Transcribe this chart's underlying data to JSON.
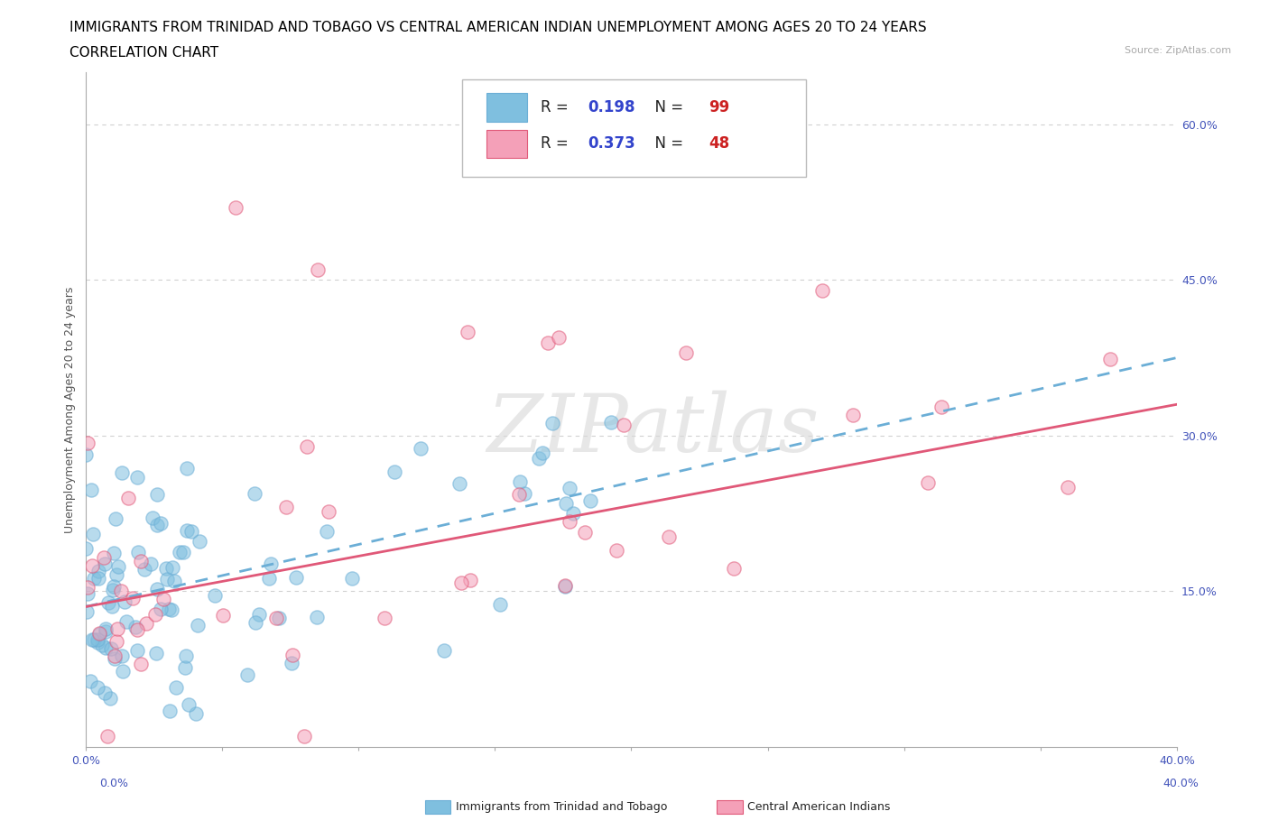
{
  "title_line1": "IMMIGRANTS FROM TRINIDAD AND TOBAGO VS CENTRAL AMERICAN INDIAN UNEMPLOYMENT AMONG AGES 20 TO 24 YEARS",
  "title_line2": "CORRELATION CHART",
  "source_text": "Source: ZipAtlas.com",
  "ylabel": "Unemployment Among Ages 20 to 24 years",
  "xmin": 0.0,
  "xmax": 0.4,
  "ymin": 0.0,
  "ymax": 0.65,
  "blue_color": "#7fbfdf",
  "pink_color": "#f4a0b8",
  "blue_line_color": "#6baed6",
  "pink_line_color": "#e05878",
  "legend_R1": "0.198",
  "legend_N1": "99",
  "legend_R2": "0.373",
  "legend_N2": "48",
  "blue_label": "Immigrants from Trinidad and Tobago",
  "pink_label": "Central American Indians",
  "blue_trend_x0": 0.0,
  "blue_trend_y0": 0.135,
  "blue_trend_x1": 0.4,
  "blue_trend_y1": 0.375,
  "pink_trend_x0": 0.0,
  "pink_trend_y0": 0.135,
  "pink_trend_x1": 0.4,
  "pink_trend_y1": 0.33,
  "background_color": "#ffffff",
  "grid_color": "#cccccc",
  "title_color": "#000000",
  "title_fontsize": 11,
  "axis_label_fontsize": 9,
  "tick_fontsize": 9,
  "watermark_text": "ZIPatlas",
  "tick_label_color": "#4455bb"
}
